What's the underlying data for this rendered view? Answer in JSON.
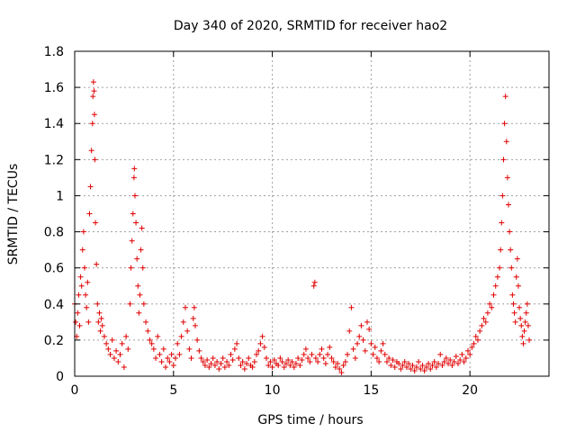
{
  "chart_data": {
    "type": "scatter",
    "title": "Day 340 of 2020, SRMTID for receiver hao2",
    "xlabel": "GPS time / hours",
    "ylabel": "SRMTID / TECUs",
    "xlim": [
      0,
      24
    ],
    "ylim": [
      0,
      1.8
    ],
    "xticks": [
      0,
      5,
      10,
      15,
      20
    ],
    "xtick_labels": [
      "0",
      "5",
      "10",
      "15",
      "20"
    ],
    "yticks": [
      0,
      0.2,
      0.4,
      0.6,
      0.8,
      1.0,
      1.2,
      1.4,
      1.6,
      1.8
    ],
    "ytick_labels": [
      "0",
      "0.2",
      "0.4",
      "0.6",
      "0.8",
      "1",
      "1.2",
      "1.4",
      "1.6",
      "1.8"
    ],
    "grid": true,
    "marker": "plus",
    "color": "#e00000",
    "series": [
      {
        "name": "SRMTID",
        "points": [
          [
            0.0,
            0.4
          ],
          [
            0.05,
            0.3
          ],
          [
            0.1,
            0.22
          ],
          [
            0.15,
            0.35
          ],
          [
            0.2,
            0.45
          ],
          [
            0.25,
            0.28
          ],
          [
            0.3,
            0.55
          ],
          [
            0.35,
            0.5
          ],
          [
            0.4,
            0.7
          ],
          [
            0.45,
            0.8
          ],
          [
            0.5,
            0.6
          ],
          [
            0.55,
            0.45
          ],
          [
            0.6,
            0.38
          ],
          [
            0.65,
            0.52
          ],
          [
            0.7,
            0.3
          ],
          [
            0.75,
            0.9
          ],
          [
            0.8,
            1.05
          ],
          [
            0.85,
            1.25
          ],
          [
            0.9,
            1.4
          ],
          [
            0.92,
            1.55
          ],
          [
            0.95,
            1.63
          ],
          [
            0.98,
            1.58
          ],
          [
            1.0,
            1.45
          ],
          [
            1.02,
            1.2
          ],
          [
            1.05,
            0.85
          ],
          [
            1.1,
            0.62
          ],
          [
            1.15,
            0.4
          ],
          [
            1.2,
            0.3
          ],
          [
            1.25,
            0.35
          ],
          [
            1.3,
            0.25
          ],
          [
            1.35,
            0.32
          ],
          [
            1.4,
            0.28
          ],
          [
            1.5,
            0.22
          ],
          [
            1.6,
            0.18
          ],
          [
            1.7,
            0.15
          ],
          [
            1.8,
            0.12
          ],
          [
            1.9,
            0.2
          ],
          [
            2.0,
            0.1
          ],
          [
            2.1,
            0.14
          ],
          [
            2.2,
            0.08
          ],
          [
            2.3,
            0.12
          ],
          [
            2.4,
            0.18
          ],
          [
            2.5,
            0.05
          ],
          [
            2.6,
            0.22
          ],
          [
            2.7,
            0.15
          ],
          [
            2.8,
            0.4
          ],
          [
            2.85,
            0.6
          ],
          [
            2.9,
            0.75
          ],
          [
            2.95,
            0.9
          ],
          [
            3.0,
            1.1
          ],
          [
            3.02,
            1.15
          ],
          [
            3.05,
            1.0
          ],
          [
            3.1,
            0.85
          ],
          [
            3.15,
            0.65
          ],
          [
            3.2,
            0.5
          ],
          [
            3.25,
            0.35
          ],
          [
            3.3,
            0.45
          ],
          [
            3.35,
            0.7
          ],
          [
            3.4,
            0.82
          ],
          [
            3.45,
            0.6
          ],
          [
            3.5,
            0.4
          ],
          [
            3.6,
            0.3
          ],
          [
            3.7,
            0.25
          ],
          [
            3.8,
            0.2
          ],
          [
            3.9,
            0.18
          ],
          [
            4.0,
            0.15
          ],
          [
            4.1,
            0.1
          ],
          [
            4.2,
            0.22
          ],
          [
            4.3,
            0.12
          ],
          [
            4.4,
            0.08
          ],
          [
            4.5,
            0.15
          ],
          [
            4.6,
            0.05
          ],
          [
            4.7,
            0.1
          ],
          [
            4.8,
            0.08
          ],
          [
            4.9,
            0.12
          ],
          [
            5.0,
            0.06
          ],
          [
            5.1,
            0.1
          ],
          [
            5.2,
            0.18
          ],
          [
            5.3,
            0.12
          ],
          [
            5.4,
            0.22
          ],
          [
            5.5,
            0.3
          ],
          [
            5.6,
            0.38
          ],
          [
            5.7,
            0.25
          ],
          [
            5.8,
            0.15
          ],
          [
            5.9,
            0.1
          ],
          [
            6.0,
            0.32
          ],
          [
            6.05,
            0.38
          ],
          [
            6.1,
            0.28
          ],
          [
            6.2,
            0.2
          ],
          [
            6.3,
            0.14
          ],
          [
            6.4,
            0.1
          ],
          [
            6.5,
            0.08
          ],
          [
            6.6,
            0.06
          ],
          [
            6.7,
            0.09
          ],
          [
            6.8,
            0.05
          ],
          [
            6.9,
            0.07
          ],
          [
            7.0,
            0.1
          ],
          [
            7.1,
            0.06
          ],
          [
            7.2,
            0.08
          ],
          [
            7.3,
            0.04
          ],
          [
            7.4,
            0.07
          ],
          [
            7.5,
            0.1
          ],
          [
            7.6,
            0.05
          ],
          [
            7.7,
            0.08
          ],
          [
            7.8,
            0.06
          ],
          [
            7.9,
            0.12
          ],
          [
            8.0,
            0.09
          ],
          [
            8.1,
            0.15
          ],
          [
            8.2,
            0.18
          ],
          [
            8.3,
            0.1
          ],
          [
            8.4,
            0.06
          ],
          [
            8.5,
            0.08
          ],
          [
            8.6,
            0.04
          ],
          [
            8.7,
            0.07
          ],
          [
            8.8,
            0.1
          ],
          [
            8.9,
            0.06
          ],
          [
            9.0,
            0.05
          ],
          [
            9.1,
            0.08
          ],
          [
            9.2,
            0.12
          ],
          [
            9.3,
            0.14
          ],
          [
            9.4,
            0.18
          ],
          [
            9.5,
            0.22
          ],
          [
            9.6,
            0.16
          ],
          [
            9.7,
            0.1
          ],
          [
            9.8,
            0.06
          ],
          [
            9.9,
            0.08
          ],
          [
            10.0,
            0.05
          ],
          [
            10.1,
            0.09
          ],
          [
            10.2,
            0.07
          ],
          [
            10.3,
            0.06
          ],
          [
            10.4,
            0.1
          ],
          [
            10.5,
            0.08
          ],
          [
            10.6,
            0.05
          ],
          [
            10.7,
            0.07
          ],
          [
            10.8,
            0.09
          ],
          [
            10.9,
            0.06
          ],
          [
            11.0,
            0.08
          ],
          [
            11.1,
            0.05
          ],
          [
            11.2,
            0.07
          ],
          [
            11.3,
            0.1
          ],
          [
            11.4,
            0.06
          ],
          [
            11.5,
            0.09
          ],
          [
            11.6,
            0.12
          ],
          [
            11.7,
            0.15
          ],
          [
            11.8,
            0.1
          ],
          [
            11.9,
            0.08
          ],
          [
            12.0,
            0.12
          ],
          [
            12.1,
            0.5
          ],
          [
            12.15,
            0.52
          ],
          [
            12.2,
            0.1
          ],
          [
            12.3,
            0.08
          ],
          [
            12.4,
            0.12
          ],
          [
            12.5,
            0.15
          ],
          [
            12.6,
            0.1
          ],
          [
            12.7,
            0.07
          ],
          [
            12.8,
            0.12
          ],
          [
            12.9,
            0.16
          ],
          [
            13.0,
            0.1
          ],
          [
            13.1,
            0.08
          ],
          [
            13.2,
            0.05
          ],
          [
            13.3,
            0.07
          ],
          [
            13.4,
            0.04
          ],
          [
            13.5,
            0.02
          ],
          [
            13.6,
            0.06
          ],
          [
            13.7,
            0.08
          ],
          [
            13.8,
            0.12
          ],
          [
            13.9,
            0.25
          ],
          [
            14.0,
            0.38
          ],
          [
            14.1,
            0.15
          ],
          [
            14.2,
            0.1
          ],
          [
            14.3,
            0.18
          ],
          [
            14.4,
            0.22
          ],
          [
            14.5,
            0.28
          ],
          [
            14.6,
            0.2
          ],
          [
            14.7,
            0.14
          ],
          [
            14.8,
            0.3
          ],
          [
            14.9,
            0.26
          ],
          [
            15.0,
            0.18
          ],
          [
            15.1,
            0.12
          ],
          [
            15.2,
            0.16
          ],
          [
            15.3,
            0.1
          ],
          [
            15.4,
            0.08
          ],
          [
            15.5,
            0.14
          ],
          [
            15.6,
            0.18
          ],
          [
            15.7,
            0.12
          ],
          [
            15.8,
            0.08
          ],
          [
            15.9,
            0.1
          ],
          [
            16.0,
            0.06
          ],
          [
            16.1,
            0.09
          ],
          [
            16.2,
            0.05
          ],
          [
            16.3,
            0.08
          ],
          [
            16.4,
            0.07
          ],
          [
            16.5,
            0.04
          ],
          [
            16.6,
            0.06
          ],
          [
            16.7,
            0.08
          ],
          [
            16.8,
            0.05
          ],
          [
            16.9,
            0.07
          ],
          [
            17.0,
            0.04
          ],
          [
            17.1,
            0.06
          ],
          [
            17.2,
            0.03
          ],
          [
            17.3,
            0.05
          ],
          [
            17.4,
            0.08
          ],
          [
            17.5,
            0.04
          ],
          [
            17.6,
            0.06
          ],
          [
            17.7,
            0.03
          ],
          [
            17.8,
            0.05
          ],
          [
            17.9,
            0.07
          ],
          [
            18.0,
            0.04
          ],
          [
            18.1,
            0.06
          ],
          [
            18.2,
            0.08
          ],
          [
            18.3,
            0.05
          ],
          [
            18.4,
            0.07
          ],
          [
            18.5,
            0.12
          ],
          [
            18.6,
            0.06
          ],
          [
            18.7,
            0.08
          ],
          [
            18.8,
            0.1
          ],
          [
            18.9,
            0.07
          ],
          [
            19.0,
            0.09
          ],
          [
            19.1,
            0.06
          ],
          [
            19.2,
            0.08
          ],
          [
            19.3,
            0.11
          ],
          [
            19.4,
            0.07
          ],
          [
            19.5,
            0.09
          ],
          [
            19.6,
            0.12
          ],
          [
            19.7,
            0.08
          ],
          [
            19.8,
            0.1
          ],
          [
            19.9,
            0.14
          ],
          [
            20.0,
            0.12
          ],
          [
            20.1,
            0.16
          ],
          [
            20.2,
            0.18
          ],
          [
            20.3,
            0.22
          ],
          [
            20.4,
            0.2
          ],
          [
            20.5,
            0.25
          ],
          [
            20.6,
            0.28
          ],
          [
            20.7,
            0.32
          ],
          [
            20.8,
            0.3
          ],
          [
            20.9,
            0.35
          ],
          [
            21.0,
            0.4
          ],
          [
            21.1,
            0.38
          ],
          [
            21.2,
            0.45
          ],
          [
            21.3,
            0.5
          ],
          [
            21.4,
            0.55
          ],
          [
            21.5,
            0.6
          ],
          [
            21.55,
            0.7
          ],
          [
            21.6,
            0.85
          ],
          [
            21.65,
            1.0
          ],
          [
            21.7,
            1.2
          ],
          [
            21.75,
            1.4
          ],
          [
            21.8,
            1.55
          ],
          [
            21.85,
            1.3
          ],
          [
            21.9,
            1.1
          ],
          [
            21.95,
            0.95
          ],
          [
            22.0,
            0.8
          ],
          [
            22.05,
            0.7
          ],
          [
            22.1,
            0.6
          ],
          [
            22.15,
            0.45
          ],
          [
            22.2,
            0.4
          ],
          [
            22.25,
            0.35
          ],
          [
            22.3,
            0.3
          ],
          [
            22.35,
            0.55
          ],
          [
            22.4,
            0.65
          ],
          [
            22.45,
            0.5
          ],
          [
            22.5,
            0.38
          ],
          [
            22.55,
            0.32
          ],
          [
            22.6,
            0.28
          ],
          [
            22.65,
            0.22
          ],
          [
            22.7,
            0.18
          ],
          [
            22.75,
            0.25
          ],
          [
            22.8,
            0.3
          ],
          [
            22.85,
            0.35
          ],
          [
            22.9,
            0.4
          ],
          [
            22.95,
            0.28
          ],
          [
            23.0,
            0.2
          ]
        ]
      }
    ]
  }
}
